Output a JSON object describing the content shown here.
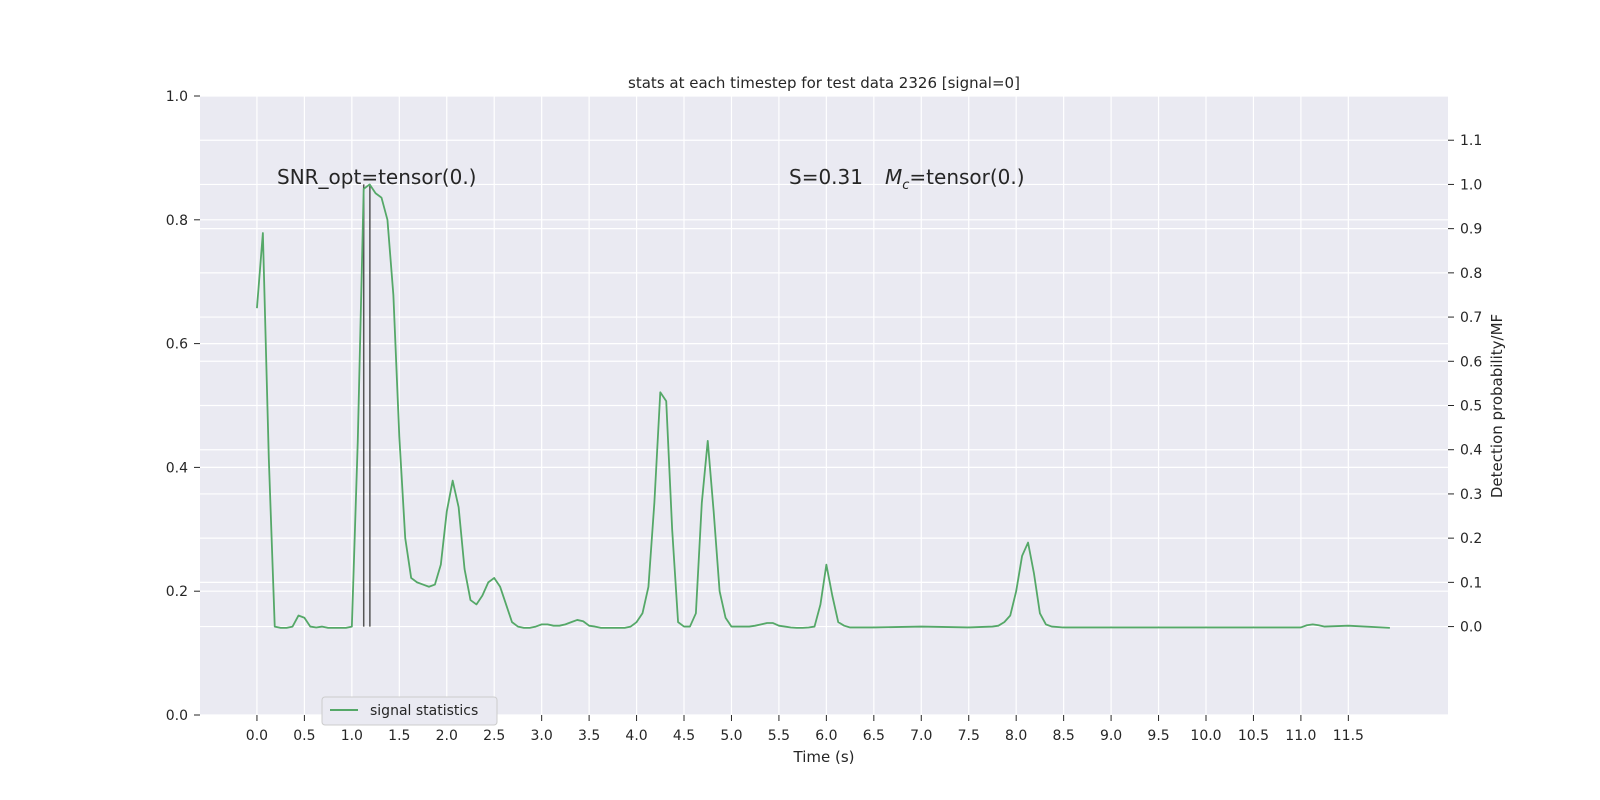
{
  "chart_data": {
    "type": "line",
    "title": "stats at each timestep for test data 2326 [signal=0]",
    "xlabel": "Time (s)",
    "ylabel": "",
    "ylabel_right": "Detection probability/MF",
    "xlim": [
      -0.6,
      12.55
    ],
    "ylim": [
      0.0,
      1.0
    ],
    "ylim_right": [
      -0.2,
      1.2
    ],
    "grid": true,
    "legend_position": "lower-left",
    "x_ticks": [
      "0.0",
      "0.5",
      "1.0",
      "1.5",
      "2.0",
      "2.5",
      "3.0",
      "3.5",
      "4.0",
      "4.5",
      "5.0",
      "5.5",
      "6.0",
      "6.5",
      "7.0",
      "7.5",
      "8.0",
      "8.5",
      "9.0",
      "9.5",
      "10.0",
      "10.5",
      "11.0",
      "11.5"
    ],
    "y_ticks_left": [
      "0.0",
      "0.2",
      "0.4",
      "0.6",
      "0.8",
      "1.0"
    ],
    "y_ticks_right": [
      "0.0",
      "0.1",
      "0.2",
      "0.3",
      "0.4",
      "0.5",
      "0.6",
      "0.7",
      "0.8",
      "0.9",
      "1.0",
      "1.1"
    ],
    "annotations": {
      "snr": "SNR_opt=tensor(0.)",
      "stats": "S=0.31",
      "mc": "M",
      "mc_sub": "c",
      "mc_value": "=tensor(0.)"
    },
    "vlines": [
      1.125,
      1.19
    ],
    "series": [
      {
        "name": "signal statistics",
        "color": "#55a868",
        "axis": "right",
        "x": [
          0.0,
          0.0625,
          0.125,
          0.1875,
          0.25,
          0.3125,
          0.375,
          0.4375,
          0.5,
          0.5625,
          0.625,
          0.6875,
          0.75,
          0.8125,
          0.875,
          0.9375,
          1.0,
          1.0625,
          1.125,
          1.1875,
          1.25,
          1.3125,
          1.375,
          1.4375,
          1.5,
          1.5625,
          1.625,
          1.6875,
          1.75,
          1.8125,
          1.875,
          1.9375,
          2.0,
          2.0625,
          2.125,
          2.1875,
          2.25,
          2.3125,
          2.375,
          2.4375,
          2.5,
          2.5625,
          2.625,
          2.6875,
          2.75,
          2.8125,
          2.875,
          2.9375,
          3.0,
          3.0625,
          3.125,
          3.1875,
          3.25,
          3.3125,
          3.375,
          3.4375,
          3.5,
          3.5625,
          3.625,
          3.6875,
          3.75,
          3.8125,
          3.875,
          3.9375,
          4.0,
          4.0625,
          4.125,
          4.1875,
          4.25,
          4.3125,
          4.375,
          4.4375,
          4.5,
          4.5625,
          4.625,
          4.6875,
          4.75,
          4.8125,
          4.875,
          4.9375,
          5.0,
          5.0625,
          5.125,
          5.1875,
          5.25,
          5.3125,
          5.375,
          5.4375,
          5.5,
          5.5625,
          5.625,
          5.6875,
          5.75,
          5.8125,
          5.875,
          5.9375,
          6.0,
          6.0625,
          6.125,
          6.1875,
          6.25,
          6.5,
          7.0,
          7.5,
          7.75,
          7.8125,
          7.875,
          7.9375,
          8.0,
          8.0625,
          8.125,
          8.1875,
          8.25,
          8.3125,
          8.375,
          8.5,
          9.0,
          10.0,
          11.0,
          11.0625,
          11.125,
          11.1875,
          11.25,
          11.5,
          11.9375
        ],
        "values": [
          0.72,
          0.89,
          0.38,
          0.0,
          -0.003,
          -0.003,
          0.0,
          0.025,
          0.02,
          0.0,
          -0.002,
          0.0,
          -0.003,
          -0.003,
          -0.003,
          -0.003,
          0.0,
          0.42,
          0.99,
          1.0,
          0.98,
          0.97,
          0.92,
          0.75,
          0.43,
          0.2,
          0.11,
          0.1,
          0.095,
          0.09,
          0.095,
          0.14,
          0.26,
          0.33,
          0.27,
          0.13,
          0.06,
          0.05,
          0.07,
          0.1,
          0.11,
          0.09,
          0.05,
          0.01,
          0.0,
          -0.003,
          -0.003,
          0.0,
          0.005,
          0.005,
          0.002,
          0.002,
          0.005,
          0.01,
          0.015,
          0.012,
          0.002,
          0.0,
          -0.003,
          -0.003,
          -0.003,
          -0.003,
          -0.003,
          0.0,
          0.01,
          0.03,
          0.09,
          0.28,
          0.53,
          0.51,
          0.22,
          0.01,
          0.0,
          0.0,
          0.03,
          0.28,
          0.42,
          0.26,
          0.08,
          0.02,
          0.0,
          0.0,
          0.0,
          0.0,
          0.002,
          0.005,
          0.008,
          0.008,
          0.002,
          0.0,
          -0.002,
          -0.003,
          -0.003,
          -0.002,
          0.0,
          0.05,
          0.14,
          0.07,
          0.01,
          0.002,
          -0.002,
          -0.002,
          0.0,
          -0.002,
          0.0,
          0.002,
          0.01,
          0.025,
          0.08,
          0.16,
          0.19,
          0.12,
          0.03,
          0.005,
          0.0,
          -0.002,
          -0.002,
          -0.002,
          -0.002,
          0.003,
          0.005,
          0.003,
          0.0,
          0.002,
          -0.003
        ]
      }
    ]
  }
}
